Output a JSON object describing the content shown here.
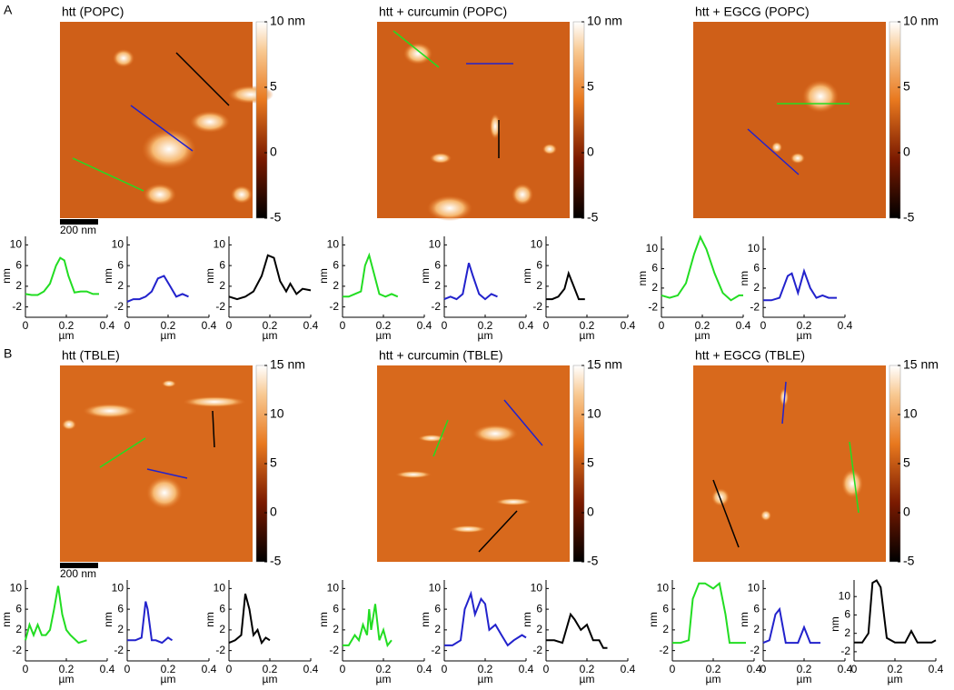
{
  "panels": [
    {
      "label": "A",
      "scale_bar": "200 nm",
      "images": [
        {
          "title": "htt (POPC)",
          "colorbar": {
            "lim": [
              -5,
              10
            ],
            "ticks": [
              {
                "value": 10,
                "label": "10 nm"
              },
              5,
              0,
              -5
            ]
          }
        },
        {
          "title": "htt + curcumin (POPC)",
          "colorbar": {
            "lim": [
              -5,
              10
            ],
            "ticks": [
              {
                "value": 10,
                "label": "10 nm"
              },
              5,
              0,
              -5
            ]
          }
        },
        {
          "title": "htt + EGCG (POPC)",
          "colorbar": {
            "lim": [
              -5,
              10
            ],
            "ticks": [
              {
                "value": 10,
                "label": "10 nm"
              },
              5,
              0,
              -5
            ]
          }
        }
      ]
    },
    {
      "label": "B",
      "scale_bar": "200 nm",
      "images": [
        {
          "title": "htt (TBLE)",
          "colorbar": {
            "lim": [
              -5,
              15
            ],
            "ticks": [
              {
                "value": 15,
                "label": "15 nm"
              },
              10,
              5,
              0,
              -5
            ]
          }
        },
        {
          "title": "htt + curcumin (TBLE)",
          "colorbar": {
            "lim": [
              -5,
              15
            ],
            "ticks": [
              {
                "value": 15,
                "label": "15 nm"
              },
              10,
              5,
              0,
              -5
            ]
          }
        },
        {
          "title": "htt + EGCG (TBLE)",
          "colorbar": {
            "lim": [
              -5,
              15
            ],
            "ticks": [
              {
                "value": 15,
                "label": "15 nm"
              },
              10,
              5,
              0,
              -5
            ]
          }
        }
      ]
    }
  ],
  "chart_data": [
    {
      "type": "line",
      "color": "#22dd22",
      "x": [
        0,
        0.03,
        0.06,
        0.09,
        0.12,
        0.15,
        0.17,
        0.19,
        0.21,
        0.24,
        0.27,
        0.3,
        0.33,
        0.36
      ],
      "values": [
        0.5,
        0.3,
        0.3,
        1,
        2.5,
        6,
        7.5,
        7,
        4,
        0.8,
        1,
        1,
        0.5,
        0.5
      ],
      "xlim": [
        0,
        0.4
      ],
      "ylim": [
        -4,
        12
      ],
      "xticks": [
        0,
        0.2,
        0.4
      ],
      "yticks": [
        -2,
        2,
        6,
        10
      ],
      "xlabel": "µm",
      "ylabel": "nm"
    },
    {
      "type": "line",
      "color": "#2222cc",
      "x": [
        0,
        0.03,
        0.06,
        0.09,
        0.12,
        0.15,
        0.18,
        0.21,
        0.24,
        0.27,
        0.3
      ],
      "values": [
        -1,
        -0.5,
        -0.5,
        0,
        1,
        3.5,
        4,
        2,
        0,
        0.5,
        0
      ],
      "xlim": [
        0,
        0.4
      ],
      "ylim": [
        -4,
        12
      ],
      "xticks": [
        0,
        0.2,
        0.4
      ],
      "yticks": [
        -2,
        2,
        6,
        10
      ],
      "xlabel": "µm",
      "ylabel": "nm"
    },
    {
      "type": "line",
      "color": "#000000",
      "x": [
        0,
        0.04,
        0.08,
        0.12,
        0.16,
        0.19,
        0.22,
        0.25,
        0.28,
        0.3,
        0.33,
        0.36,
        0.4
      ],
      "values": [
        0,
        -0.5,
        0,
        1,
        4,
        8,
        7.5,
        3,
        1,
        2.5,
        0.5,
        1.5,
        1.2
      ],
      "xlim": [
        0,
        0.4
      ],
      "ylim": [
        -4,
        12
      ],
      "xticks": [
        0,
        0.2,
        0.4
      ],
      "yticks": [
        -2,
        2,
        6,
        10
      ],
      "xlabel": "µm",
      "ylabel": "nm"
    },
    {
      "type": "line",
      "color": "#22dd22",
      "x": [
        0,
        0.03,
        0.06,
        0.09,
        0.11,
        0.13,
        0.15,
        0.18,
        0.21,
        0.24,
        0.27
      ],
      "values": [
        0,
        0,
        0.5,
        1,
        6,
        8,
        5,
        0.5,
        0,
        0.5,
        0
      ],
      "xlim": [
        0,
        0.4
      ],
      "ylim": [
        -4,
        12
      ],
      "xticks": [
        0,
        0.2,
        0.4
      ],
      "yticks": [
        -2,
        2,
        6,
        10
      ],
      "xlabel": "µm",
      "ylabel": "nm"
    },
    {
      "type": "line",
      "color": "#2222cc",
      "x": [
        0,
        0.03,
        0.06,
        0.09,
        0.12,
        0.14,
        0.17,
        0.2,
        0.23,
        0.26
      ],
      "values": [
        -0.5,
        0,
        -0.5,
        0.5,
        6.5,
        4,
        0.5,
        -0.5,
        0.5,
        0
      ],
      "xlim": [
        0,
        0.4
      ],
      "ylim": [
        -4,
        12
      ],
      "xticks": [
        0,
        0.2,
        0.4
      ],
      "yticks": [
        -2,
        2,
        6,
        10
      ],
      "xlabel": "µm",
      "ylabel": "nm"
    },
    {
      "type": "line",
      "color": "#000000",
      "x": [
        0,
        0.03,
        0.06,
        0.09,
        0.11,
        0.13,
        0.16,
        0.19
      ],
      "values": [
        -0.5,
        -0.5,
        0,
        1.5,
        4.5,
        2.5,
        -0.5,
        -0.5
      ],
      "xlim": [
        0,
        0.4
      ],
      "ylim": [
        -4,
        12
      ],
      "xticks": [
        0,
        0.2,
        0.4
      ],
      "yticks": [
        -2,
        2,
        6,
        10
      ],
      "xlabel": "µm",
      "ylabel": "nm"
    },
    {
      "type": "line",
      "color": "#22dd22",
      "x": [
        0,
        0.04,
        0.08,
        0.12,
        0.16,
        0.19,
        0.22,
        0.26,
        0.3,
        0.34,
        0.38,
        0.4
      ],
      "values": [
        0.5,
        0,
        0.5,
        3,
        9,
        12.5,
        10,
        5,
        1,
        -0.5,
        0.5,
        0.5
      ],
      "xlim": [
        0,
        0.4
      ],
      "ylim": [
        -4,
        13
      ],
      "xticks": [
        0,
        0.2,
        0.4
      ],
      "yticks": [
        -2,
        2,
        6,
        10
      ],
      "xlabel": "µm",
      "ylabel": "nm"
    },
    {
      "type": "line",
      "color": "#2222cc",
      "x": [
        0,
        0.04,
        0.08,
        0.12,
        0.14,
        0.17,
        0.2,
        0.23,
        0.26,
        0.29,
        0.32,
        0.36
      ],
      "values": [
        -0.5,
        -0.5,
        0,
        4.5,
        5,
        1,
        5.5,
        2,
        0,
        0.5,
        0,
        0
      ],
      "xlim": [
        0,
        0.4
      ],
      "ylim": [
        -4,
        13
      ],
      "xticks": [
        0,
        0.2,
        0.4
      ],
      "yticks": [
        -2,
        2,
        6,
        10
      ],
      "xlabel": "µm",
      "ylabel": "nm"
    },
    {
      "type": "line",
      "color": "#22dd22",
      "x": [
        0,
        0.02,
        0.04,
        0.06,
        0.08,
        0.1,
        0.12,
        0.14,
        0.16,
        0.18,
        0.2,
        0.22,
        0.26,
        0.3
      ],
      "values": [
        0,
        3,
        1,
        3,
        1,
        1,
        2,
        6,
        10.5,
        5,
        2,
        1,
        -0.5,
        0
      ],
      "xlim": [
        0,
        0.4
      ],
      "ylim": [
        -4,
        12
      ],
      "xticks": [
        0,
        0.2,
        0.4
      ],
      "yticks": [
        -2,
        2,
        6,
        10
      ],
      "xlabel": "µm",
      "ylabel": "nm"
    },
    {
      "type": "line",
      "color": "#2222cc",
      "x": [
        0,
        0.04,
        0.07,
        0.09,
        0.1,
        0.12,
        0.14,
        0.17,
        0.2,
        0.22
      ],
      "values": [
        0,
        0,
        0.5,
        7.5,
        6,
        0,
        0,
        -0.5,
        0.5,
        0
      ],
      "xlim": [
        0,
        0.4
      ],
      "ylim": [
        -4,
        12
      ],
      "xticks": [
        0,
        0.2,
        0.4
      ],
      "yticks": [
        -2,
        2,
        6,
        10
      ],
      "xlabel": "µm",
      "ylabel": "nm"
    },
    {
      "type": "line",
      "color": "#000000",
      "x": [
        0,
        0.03,
        0.06,
        0.08,
        0.1,
        0.12,
        0.14,
        0.16,
        0.18,
        0.2
      ],
      "values": [
        -0.5,
        0,
        1,
        9,
        6,
        1,
        2,
        -0.5,
        0.5,
        0
      ],
      "xlim": [
        0,
        0.4
      ],
      "ylim": [
        -4,
        12
      ],
      "xticks": [
        0,
        0.2,
        0.4
      ],
      "yticks": [
        -2,
        2,
        6,
        10
      ],
      "xlabel": "µm",
      "ylabel": "nm"
    },
    {
      "type": "line",
      "color": "#22dd22",
      "x": [
        0,
        0.03,
        0.06,
        0.08,
        0.1,
        0.12,
        0.13,
        0.14,
        0.16,
        0.18,
        0.2,
        0.22,
        0.24
      ],
      "values": [
        -1,
        -1,
        1,
        0,
        3,
        1,
        6,
        2,
        7,
        0,
        2,
        -1,
        0
      ],
      "xlim": [
        0,
        0.4
      ],
      "ylim": [
        -4,
        12
      ],
      "xticks": [
        0,
        0.2,
        0.4
      ],
      "yticks": [
        -2,
        2,
        6,
        10
      ],
      "xlabel": "µm",
      "ylabel": "nm"
    },
    {
      "type": "line",
      "color": "#2222cc",
      "x": [
        0,
        0.04,
        0.08,
        0.1,
        0.13,
        0.15,
        0.18,
        0.2,
        0.22,
        0.25,
        0.28,
        0.31,
        0.34,
        0.38,
        0.4
      ],
      "values": [
        -1,
        -1,
        0,
        6,
        9,
        5,
        8,
        7,
        2,
        3,
        1,
        -1,
        0,
        1,
        0.5
      ],
      "xlim": [
        0,
        0.4
      ],
      "ylim": [
        -4,
        12
      ],
      "xticks": [
        0,
        0.2,
        0.4
      ],
      "yticks": [
        -2,
        2,
        6,
        10
      ],
      "xlabel": "µm",
      "ylabel": "nm"
    },
    {
      "type": "line",
      "color": "#000000",
      "x": [
        0,
        0.04,
        0.08,
        0.12,
        0.14,
        0.17,
        0.2,
        0.23,
        0.26,
        0.28,
        0.3
      ],
      "values": [
        0,
        0,
        -0.5,
        5,
        4,
        2,
        3,
        0,
        0,
        -1.5,
        -1.5
      ],
      "xlim": [
        0,
        0.4
      ],
      "ylim": [
        -4,
        12
      ],
      "xticks": [
        0,
        0.2,
        0.4
      ],
      "yticks": [
        -2,
        2,
        6,
        10
      ],
      "xlabel": "µm",
      "ylabel": "nm"
    },
    {
      "type": "line",
      "color": "#22dd22",
      "x": [
        0,
        0.04,
        0.08,
        0.1,
        0.13,
        0.16,
        0.2,
        0.23,
        0.26,
        0.28,
        0.32,
        0.36
      ],
      "values": [
        -0.5,
        -0.5,
        0,
        8,
        11,
        11,
        10,
        11,
        5,
        -0.5,
        -0.5,
        -0.5
      ],
      "xlim": [
        0,
        0.4
      ],
      "ylim": [
        -4,
        12
      ],
      "xticks": [
        0,
        0.2,
        0.4
      ],
      "yticks": [
        -2,
        2,
        6,
        10
      ],
      "xlabel": "µm",
      "ylabel": "nm"
    },
    {
      "type": "line",
      "color": "#2222cc",
      "x": [
        0,
        0.03,
        0.06,
        0.08,
        0.11,
        0.14,
        0.17,
        0.2,
        0.23,
        0.25,
        0.28
      ],
      "values": [
        -0.5,
        0,
        5,
        6,
        -0.5,
        -0.5,
        -0.5,
        2.5,
        -0.5,
        -0.5,
        -0.5
      ],
      "xlim": [
        0,
        0.4
      ],
      "ylim": [
        -4,
        12
      ],
      "xticks": [
        0,
        0.2,
        0.4
      ],
      "yticks": [
        -2,
        2,
        6,
        10
      ],
      "xlabel": "µm",
      "ylabel": "nm"
    },
    {
      "type": "line",
      "color": "#000000",
      "x": [
        0,
        0.04,
        0.07,
        0.09,
        0.11,
        0.13,
        0.16,
        0.2,
        0.25,
        0.28,
        0.31,
        0.34,
        0.38,
        0.4
      ],
      "values": [
        0,
        0,
        2,
        13,
        13.5,
        12,
        1,
        0,
        0,
        2.5,
        0,
        0,
        0,
        0.5
      ],
      "xlim": [
        0,
        0.4
      ],
      "ylim": [
        -4,
        14
      ],
      "xticks": [
        0,
        0.2,
        0.4
      ],
      "yticks": [
        -2,
        2,
        6,
        10
      ],
      "xlabel": "µm",
      "ylabel": "nm"
    }
  ]
}
